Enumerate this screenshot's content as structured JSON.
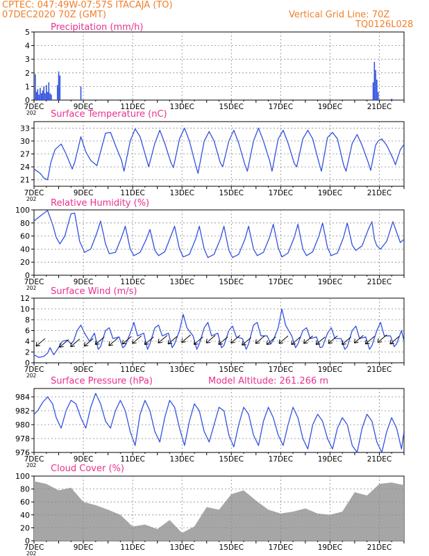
{
  "header": {
    "station": "CPTEC:  047:49W-07:57S  ITACAJA (TO)",
    "run": "07DEC2020 70Z (GMT)",
    "grid_note": "Vertical Grid Line: 70Z",
    "code": "TQ0126L028",
    "color": "#f07f2b"
  },
  "colors": {
    "title": "#e8308e",
    "series": "#3050e0",
    "cloud": "#a6a6a6",
    "wind_arrow": "#000000"
  },
  "x_axis": {
    "ticks": [
      "7DEC",
      "9DEC",
      "11DEC",
      "13DEC",
      "15DEC",
      "17DEC",
      "19DEC",
      "21DEC"
    ],
    "tick_days": [
      0,
      2,
      4,
      6,
      8,
      10,
      12,
      14
    ],
    "range_days": [
      0,
      15
    ],
    "year_fragment": "202"
  },
  "chart_data": [
    {
      "type": "bar",
      "title": "Precipitation (mm/h)",
      "ylim": [
        0,
        5
      ],
      "yticks": [
        0,
        1,
        2,
        3,
        4,
        5
      ],
      "x": [
        0.05,
        0.1,
        0.15,
        0.2,
        0.25,
        0.3,
        0.35,
        0.4,
        0.45,
        0.5,
        0.55,
        0.6,
        0.65,
        0.7,
        0.95,
        1.0,
        1.05,
        1.9,
        13.75,
        13.8,
        13.85,
        13.9,
        13.95,
        14.5
      ],
      "values": [
        1.9,
        0.6,
        0.8,
        0.4,
        0.9,
        0.5,
        0.7,
        1.0,
        0.5,
        1.1,
        0.6,
        1.3,
        0.5,
        0.4,
        1.1,
        2.1,
        1.8,
        1.0,
        1.3,
        2.8,
        2.2,
        1.5,
        0.6,
        0.1
      ]
    },
    {
      "type": "line",
      "title": "Surface Temperature (nC)",
      "ylim": [
        19.5,
        34.5
      ],
      "yticks": [
        21,
        24,
        27,
        30,
        33
      ],
      "x": [
        0,
        0.25,
        0.4,
        0.55,
        0.68,
        0.85,
        1.1,
        1.3,
        1.55,
        1.65,
        1.9,
        2.1,
        2.3,
        2.55,
        2.65,
        2.9,
        3.1,
        3.3,
        3.55,
        3.65,
        3.9,
        4.1,
        4.3,
        4.55,
        4.65,
        4.9,
        5.1,
        5.3,
        5.55,
        5.65,
        5.9,
        6.1,
        6.3,
        6.55,
        6.65,
        6.9,
        7.1,
        7.3,
        7.55,
        7.65,
        7.9,
        8.1,
        8.3,
        8.55,
        8.65,
        8.9,
        9.1,
        9.3,
        9.55,
        9.65,
        9.9,
        10.1,
        10.3,
        10.55,
        10.65,
        10.9,
        11.1,
        11.3,
        11.55,
        11.65,
        11.9,
        12.1,
        12.3,
        12.55,
        12.65,
        12.9,
        13.1,
        13.3,
        13.55,
        13.65,
        13.85,
        13.95,
        14.1,
        14.3,
        14.55,
        14.65,
        14.85,
        15.0
      ],
      "values": [
        23.5,
        22.5,
        21.4,
        21.0,
        25.0,
        28.0,
        29.3,
        27.0,
        23.5,
        25.0,
        31.0,
        27.5,
        25.5,
        24.3,
        26.5,
        31.8,
        32.0,
        29.0,
        25.5,
        23.0,
        30.0,
        32.8,
        31.0,
        26.0,
        24.0,
        29.5,
        32.5,
        29.5,
        25.0,
        23.8,
        30.5,
        33.0,
        30.0,
        24.5,
        22.5,
        30.0,
        32.2,
        30.0,
        25.0,
        24.0,
        30.0,
        32.5,
        29.5,
        24.5,
        23.0,
        30.0,
        33.0,
        30.0,
        25.5,
        23.0,
        30.5,
        32.5,
        29.5,
        24.8,
        24.0,
        30.5,
        32.5,
        30.5,
        25.0,
        23.0,
        30.8,
        32.0,
        30.5,
        24.5,
        23.0,
        29.5,
        31.5,
        29.0,
        25.0,
        23.2,
        29.0,
        30.0,
        30.5,
        29.0,
        26.0,
        24.5,
        28.0,
        29.2
      ]
    },
    {
      "type": "line",
      "title": "Relative Humidity (%)",
      "ylim": [
        0,
        100
      ],
      "yticks": [
        0,
        20,
        40,
        60,
        80,
        100
      ],
      "x": [
        0,
        0.3,
        0.55,
        0.75,
        0.9,
        1.05,
        1.25,
        1.5,
        1.65,
        1.85,
        2.05,
        2.3,
        2.55,
        2.7,
        2.9,
        3.05,
        3.3,
        3.55,
        3.7,
        3.9,
        4.05,
        4.3,
        4.55,
        4.7,
        4.9,
        5.05,
        5.3,
        5.55,
        5.7,
        5.9,
        6.05,
        6.3,
        6.55,
        6.7,
        6.9,
        7.05,
        7.3,
        7.55,
        7.7,
        7.9,
        8.05,
        8.3,
        8.55,
        8.7,
        8.9,
        9.05,
        9.3,
        9.55,
        9.7,
        9.9,
        10.05,
        10.3,
        10.55,
        10.7,
        10.9,
        11.05,
        11.3,
        11.55,
        11.7,
        11.9,
        12.05,
        12.3,
        12.55,
        12.7,
        12.9,
        13.05,
        13.3,
        13.55,
        13.7,
        13.8,
        13.9,
        14.05,
        14.3,
        14.55,
        14.7,
        14.85,
        15.0
      ],
      "values": [
        83,
        92,
        99,
        78,
        58,
        48,
        60,
        94,
        95,
        52,
        35,
        40,
        65,
        83,
        48,
        33,
        35,
        58,
        75,
        40,
        30,
        35,
        55,
        70,
        38,
        30,
        36,
        60,
        75,
        40,
        28,
        32,
        55,
        75,
        40,
        27,
        32,
        55,
        75,
        38,
        27,
        32,
        55,
        75,
        40,
        30,
        35,
        58,
        78,
        42,
        28,
        34,
        58,
        78,
        40,
        30,
        36,
        60,
        80,
        42,
        30,
        34,
        58,
        80,
        46,
        38,
        45,
        70,
        82,
        55,
        45,
        40,
        52,
        82,
        66,
        50,
        55
      ]
    },
    {
      "type": "line",
      "title": "Surface Wind (m/s)",
      "ylim": [
        0,
        12
      ],
      "yticks": [
        0,
        2,
        4,
        6,
        8,
        10,
        12
      ],
      "x": [
        0,
        0.2,
        0.4,
        0.55,
        0.65,
        0.8,
        0.95,
        1.15,
        1.35,
        1.5,
        1.6,
        1.75,
        1.9,
        2.05,
        2.25,
        2.45,
        2.6,
        2.7,
        2.9,
        3.05,
        3.2,
        3.45,
        3.6,
        3.7,
        3.9,
        4.05,
        4.2,
        4.45,
        4.6,
        4.7,
        4.9,
        5.05,
        5.2,
        5.45,
        5.6,
        5.7,
        5.9,
        6.05,
        6.2,
        6.45,
        6.6,
        6.7,
        6.9,
        7.05,
        7.2,
        7.45,
        7.6,
        7.7,
        7.9,
        8.05,
        8.2,
        8.45,
        8.6,
        8.7,
        8.9,
        9.05,
        9.2,
        9.45,
        9.6,
        9.7,
        9.9,
        10.05,
        10.2,
        10.45,
        10.6,
        10.7,
        10.9,
        11.05,
        11.2,
        11.45,
        11.6,
        11.7,
        11.9,
        12.05,
        12.2,
        12.45,
        12.6,
        12.7,
        12.9,
        13.05,
        13.2,
        13.45,
        13.6,
        13.7,
        13.9,
        14.05,
        14.2,
        14.45,
        14.6,
        14.7,
        14.9,
        15.0
      ],
      "values": [
        1.5,
        1.0,
        1.2,
        1.8,
        2.8,
        1.5,
        2.5,
        4.0,
        4.2,
        3.5,
        4.0,
        6.0,
        7.0,
        5.5,
        4.0,
        5.5,
        2.5,
        3.0,
        6.0,
        6.5,
        4.5,
        4.8,
        2.8,
        3.2,
        5.5,
        7.5,
        5.0,
        5.5,
        2.5,
        3.5,
        6.5,
        7.0,
        5.0,
        5.5,
        2.8,
        3.5,
        6.0,
        9.0,
        6.5,
        5.0,
        2.5,
        3.5,
        6.5,
        7.5,
        5.0,
        5.5,
        2.8,
        3.2,
        6.0,
        6.8,
        4.8,
        4.5,
        2.5,
        3.5,
        7.0,
        7.5,
        5.0,
        5.0,
        3.5,
        4.2,
        6.5,
        10.0,
        7.0,
        5.0,
        2.8,
        3.5,
        6.0,
        6.5,
        4.5,
        4.8,
        2.8,
        3.0,
        5.5,
        6.5,
        4.5,
        4.5,
        2.5,
        3.0,
        6.0,
        6.8,
        4.5,
        4.8,
        2.5,
        3.2,
        6.0,
        7.5,
        5.0,
        5.0,
        3.0,
        3.5,
        6.0,
        4.0
      ],
      "wind_barb_x": [
        0.45,
        1.4,
        1.85,
        2.4,
        2.85,
        3.4,
        3.95,
        4.35,
        4.85,
        5.4,
        5.8,
        6.35,
        6.85,
        7.35,
        7.85,
        8.35,
        8.8,
        9.35,
        9.8,
        10.3,
        10.8,
        11.3,
        11.8,
        12.3,
        12.85,
        13.35,
        13.8,
        14.3,
        14.8
      ],
      "wind_barb_value": [
        4.5,
        4.3,
        4.4,
        4.5,
        4.8,
        4.6,
        4.9,
        5.0,
        4.8,
        5.1,
        4.9,
        5.2,
        4.8,
        5.1,
        4.8,
        5.1,
        4.7,
        5.0,
        4.8,
        5.0,
        4.8,
        5.0,
        4.8,
        5.0,
        4.8,
        5.1,
        4.9,
        5.2,
        4.9
      ]
    },
    {
      "type": "line",
      "title": "Surface Pressure (hPa)",
      "annotation": "Model Altitude: 261.266 m",
      "ylim": [
        976,
        985.2
      ],
      "yticks": [
        976,
        978,
        980,
        982,
        984
      ],
      "x": [
        0,
        0.15,
        0.35,
        0.55,
        0.75,
        0.9,
        1.1,
        1.3,
        1.5,
        1.7,
        1.9,
        2.1,
        2.3,
        2.5,
        2.7,
        2.9,
        3.1,
        3.3,
        3.5,
        3.7,
        3.9,
        4.1,
        4.3,
        4.5,
        4.7,
        4.9,
        5.1,
        5.3,
        5.5,
        5.7,
        5.9,
        6.1,
        6.3,
        6.5,
        6.7,
        6.9,
        7.1,
        7.3,
        7.5,
        7.7,
        7.9,
        8.1,
        8.3,
        8.5,
        8.7,
        8.9,
        9.1,
        9.3,
        9.5,
        9.7,
        9.9,
        10.1,
        10.3,
        10.5,
        10.7,
        10.9,
        11.1,
        11.3,
        11.5,
        11.7,
        11.9,
        12.1,
        12.3,
        12.5,
        12.7,
        12.9,
        13.1,
        13.3,
        13.5,
        13.7,
        13.9,
        14.1,
        14.3,
        14.5,
        14.7,
        14.9,
        15.0
      ],
      "values": [
        981.5,
        982.0,
        983.2,
        984.0,
        983.0,
        981.0,
        979.5,
        982.0,
        983.5,
        983.0,
        981.0,
        979.5,
        982.5,
        984.5,
        983.0,
        980.5,
        979.5,
        982.0,
        983.5,
        982.0,
        979.0,
        977.0,
        981.5,
        983.5,
        982.0,
        979.0,
        977.5,
        981.0,
        983.5,
        982.5,
        979.5,
        977.0,
        980.5,
        983.0,
        982.0,
        979.0,
        977.5,
        980.0,
        982.5,
        982.0,
        978.5,
        976.8,
        980.0,
        982.5,
        981.5,
        978.5,
        977.0,
        980.5,
        982.5,
        981.0,
        978.5,
        977.0,
        980.0,
        982.5,
        981.0,
        978.0,
        976.5,
        980.0,
        981.5,
        980.5,
        978.0,
        976.5,
        979.5,
        981.0,
        980.0,
        977.0,
        976.0,
        979.5,
        981.5,
        980.5,
        977.5,
        976.0,
        979.0,
        981.0,
        979.5,
        976.5,
        979.0
      ]
    },
    {
      "type": "area",
      "title": "Cloud Cover (%)",
      "ylim": [
        0,
        100
      ],
      "yticks": [
        0,
        20,
        40,
        60,
        80,
        100
      ],
      "x": [
        0,
        0.5,
        1.0,
        1.5,
        2.0,
        2.5,
        3.0,
        3.5,
        4.0,
        4.5,
        5.0,
        5.5,
        6.0,
        6.5,
        7.0,
        7.5,
        8.0,
        8.5,
        9.0,
        9.5,
        10.0,
        10.5,
        11.0,
        11.5,
        12.0,
        12.5,
        13.0,
        13.5,
        14.0,
        14.5,
        15.0
      ],
      "values": [
        92,
        88,
        78,
        82,
        60,
        55,
        48,
        40,
        22,
        25,
        18,
        32,
        12,
        22,
        52,
        48,
        72,
        78,
        62,
        48,
        42,
        45,
        50,
        42,
        40,
        45,
        75,
        70,
        88,
        90,
        86
      ]
    }
  ]
}
